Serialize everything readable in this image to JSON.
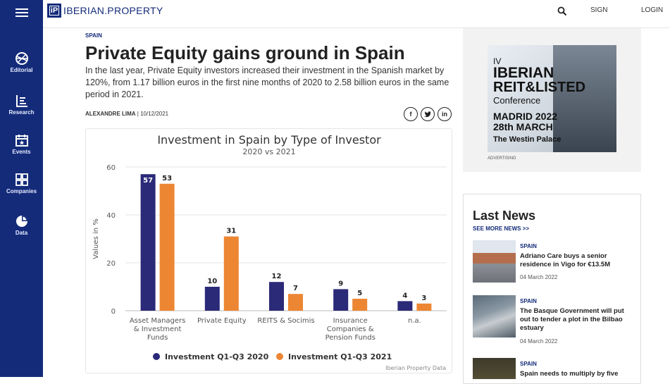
{
  "sidebar": {
    "items": [
      {
        "label": "Editorial",
        "icon": "globe-icon"
      },
      {
        "label": "Research",
        "icon": "research-icon"
      },
      {
        "label": "Events",
        "icon": "calendar-icon"
      },
      {
        "label": "Companies",
        "icon": "grid-icon"
      },
      {
        "label": "Data",
        "icon": "pie-icon"
      }
    ]
  },
  "header": {
    "logo_mark": "iP",
    "logo_text": "IBERIAN.PROPERTY",
    "sign_label": "SIGN",
    "login_label": "LOGIN"
  },
  "article": {
    "category": "SPAIN",
    "title": "Private Equity gains ground in Spain",
    "lead": "In the last year, Private Equity investors increased their investment in the Spanish market by 120%, from 1.17 billion euros in the first nine months of 2020 to 2.58 billion euros in the same period in 2021.",
    "author": "ALEXANDRE LIMA",
    "date": "10/12/2021",
    "share": {
      "facebook": "f",
      "linkedin": "in"
    }
  },
  "chart_data": {
    "type": "bar",
    "title": "Investment in Spain by Type of Investor",
    "subtitle": "2020 vs 2021",
    "ylabel": "Values in %",
    "xlabel": "",
    "ylim": [
      0,
      60
    ],
    "yticks": [
      "0",
      "20",
      "40",
      "60"
    ],
    "categories": [
      [
        "Asset Managers",
        "& Investment",
        "Funds"
      ],
      [
        "Private Equity"
      ],
      [
        "REITS & Socimis"
      ],
      [
        "Insurance",
        "Companies &",
        "Pension Funds"
      ],
      [
        "n.a."
      ]
    ],
    "series": [
      {
        "name": "Investment Q1-Q3 2020",
        "values": [
          57,
          10,
          12,
          9,
          4
        ],
        "color": "#2b2a78"
      },
      {
        "name": "Investment Q1-Q3 2021",
        "values": [
          53,
          31,
          7,
          5,
          3
        ],
        "color": "#ec8633"
      }
    ],
    "legend": "bottom",
    "grid": true,
    "source": "Iberian Property Data"
  },
  "ad": {
    "line1": "IV",
    "line2": "IBERIAN",
    "line3": "REIT&LISTED",
    "line4": "Conference",
    "line5": "MADRID 2022",
    "line6": "28th MARCH",
    "line7": "The Westin Palace",
    "label": "ADVERTISING"
  },
  "last_news": {
    "title": "Last News",
    "more": "SEE MORE NEWS >>",
    "items": [
      {
        "category": "SPAIN",
        "headline": "Adriano Care buys a senior residence in Vigo for €13.5M",
        "date": "04 March 2022"
      },
      {
        "category": "SPAIN",
        "headline": "The Basque Government will put out to tender a plot in the Bilbao estuary",
        "date": "04 March 2022"
      },
      {
        "category": "SPAIN",
        "headline": "Spain needs to multiply by five"
      }
    ]
  }
}
